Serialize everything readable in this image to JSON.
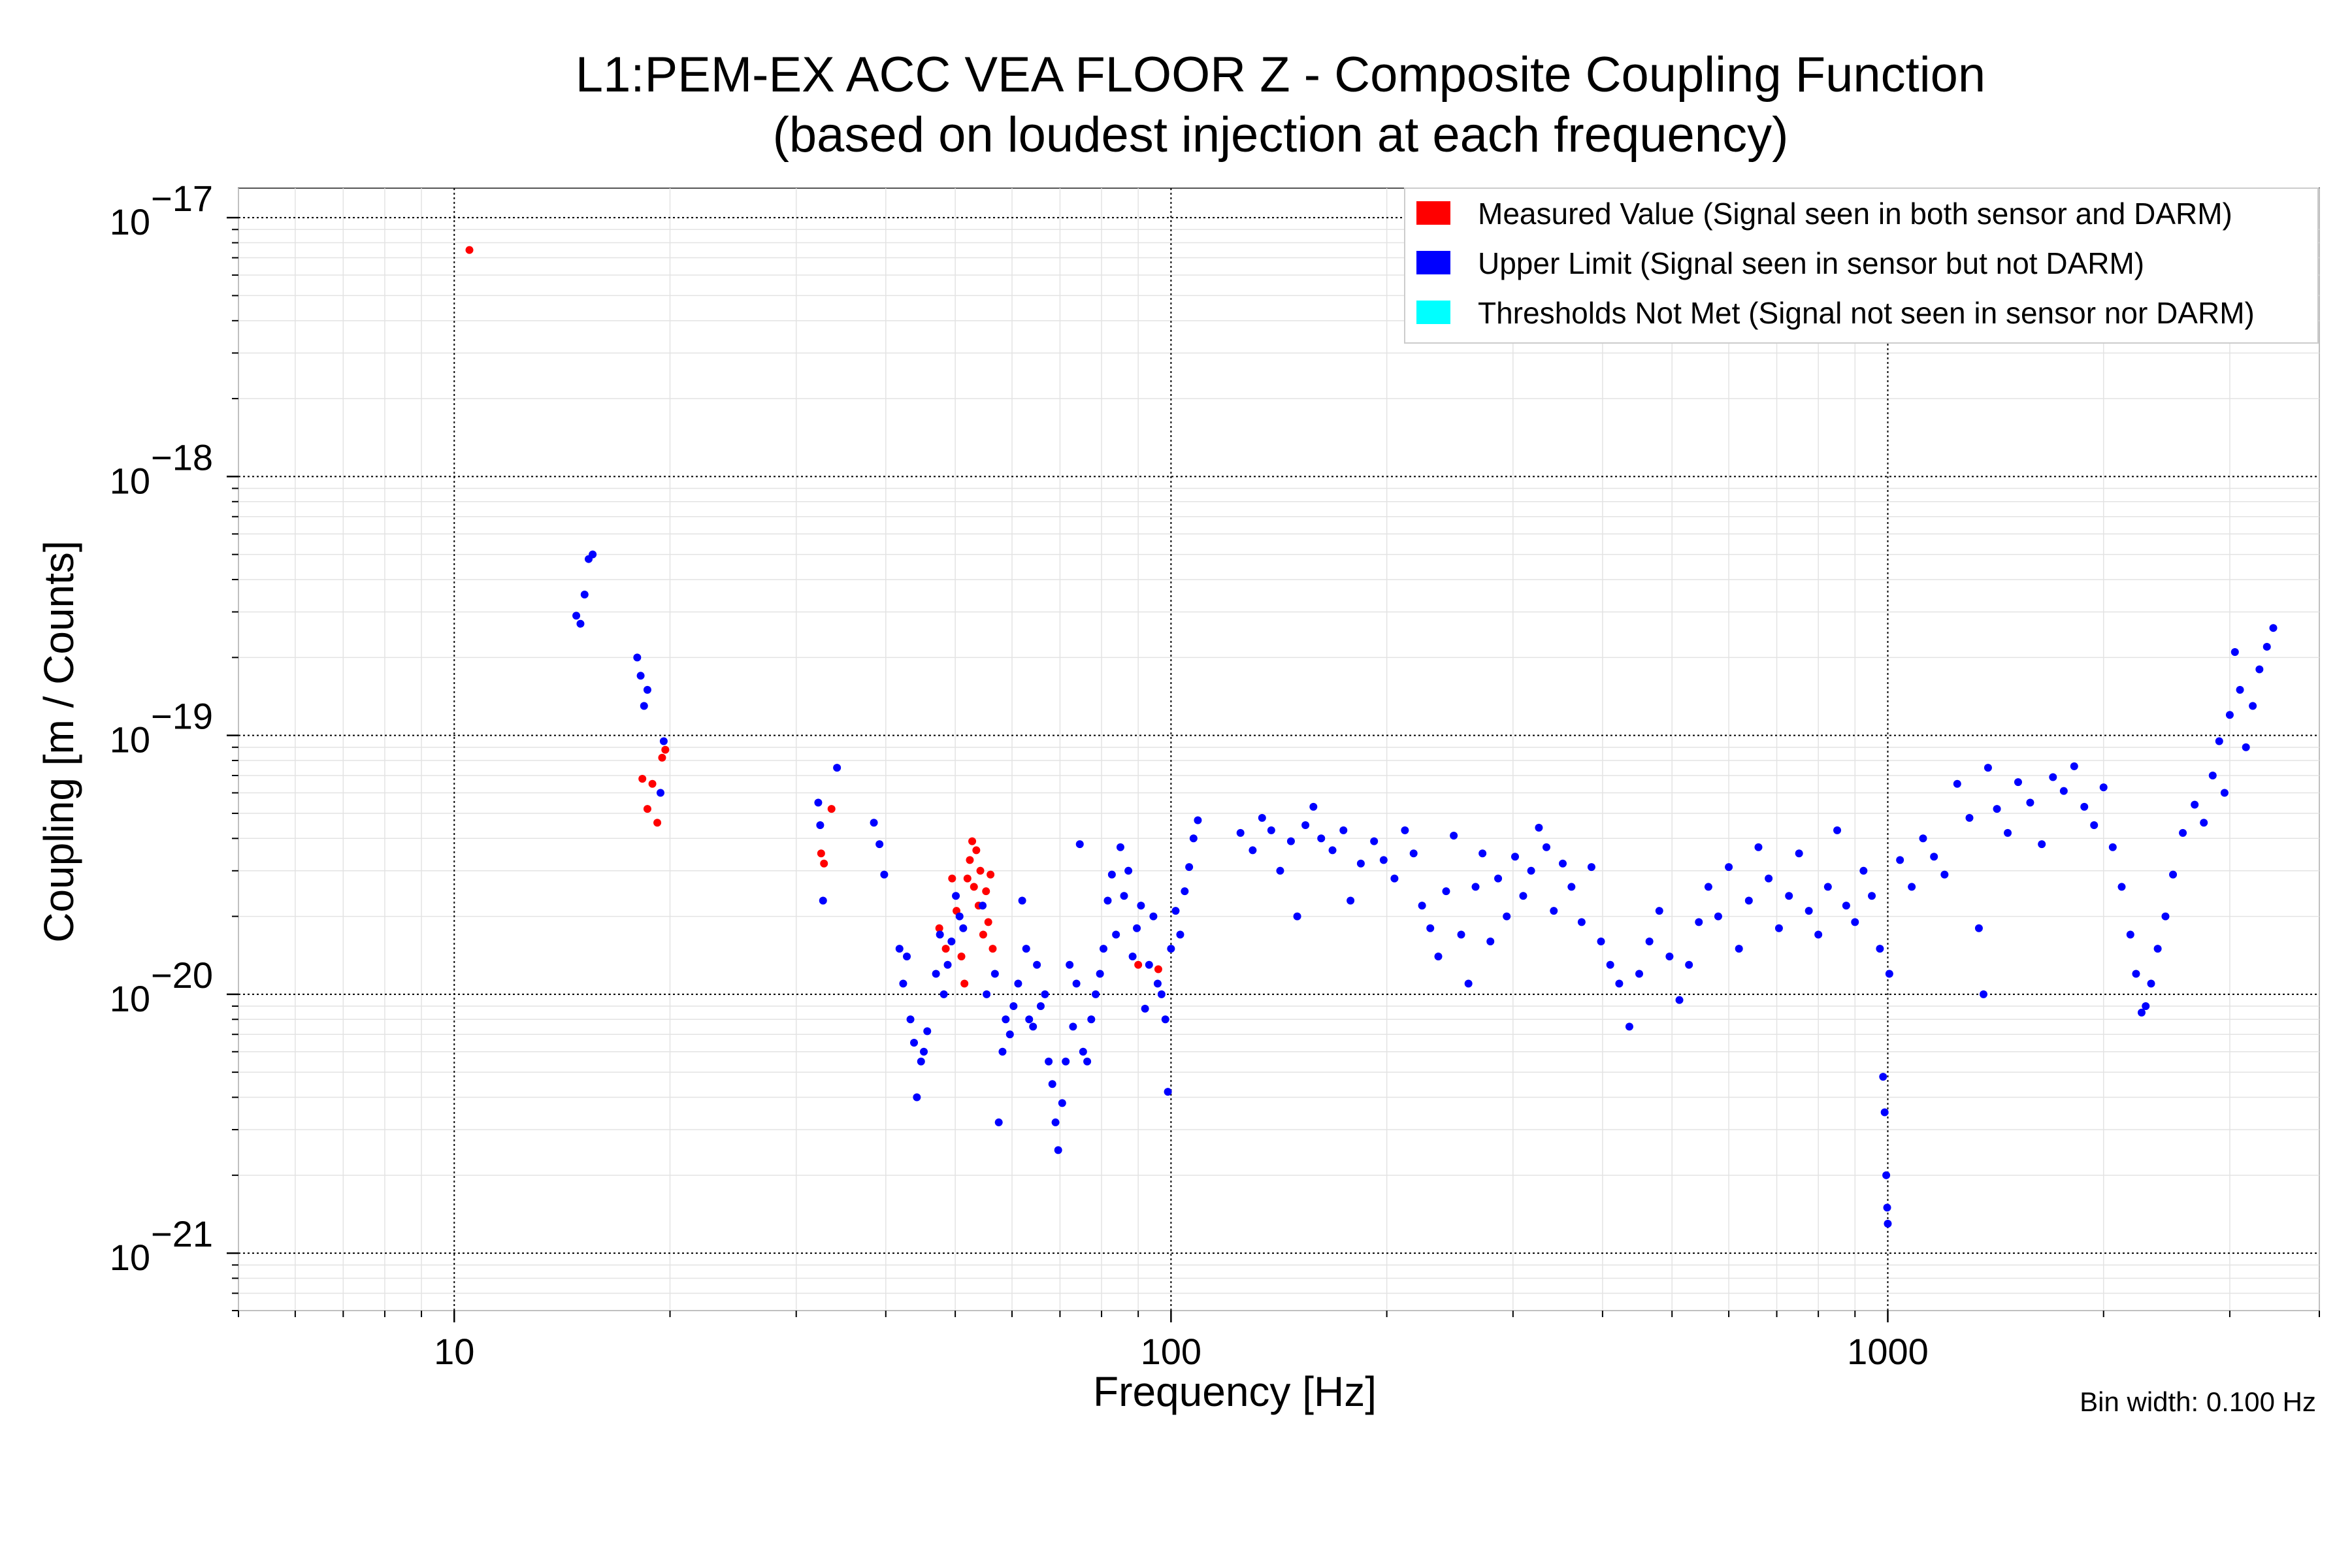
{
  "chart_data": {
    "type": "scatter",
    "title": "L1:PEM-EX ACC VEA FLOOR Z - Composite Coupling Function",
    "subtitle": "(based on loudest injection at each frequency)",
    "xlabel": "Frequency [Hz]",
    "ylabel": "Coupling [m / Counts]",
    "xscale": "log",
    "yscale": "log",
    "xlim": [
      5,
      4000
    ],
    "ylim": [
      6e-22,
      1.3e-17
    ],
    "x_ticks": [
      {
        "value": 10,
        "label": "10"
      },
      {
        "value": 100,
        "label": "100"
      },
      {
        "value": 1000,
        "label": "1000"
      }
    ],
    "y_ticks": [
      {
        "value": 1e-21,
        "base": "10",
        "exp": "−21"
      },
      {
        "value": 1e-20,
        "base": "10",
        "exp": "−20"
      },
      {
        "value": 1e-19,
        "base": "10",
        "exp": "−19"
      },
      {
        "value": 1e-18,
        "base": "10",
        "exp": "−18"
      },
      {
        "value": 1e-17,
        "base": "10",
        "exp": "−17"
      }
    ],
    "grid": true,
    "legend_position": "top-right",
    "note": "Bin width: 0.100 Hz",
    "series": [
      {
        "name": "Measured Value (Signal seen in both sensor and DARM)",
        "color": "#ff0000",
        "points": [
          [
            10.5,
            7.5e-18
          ],
          [
            18.3,
            6.8e-20
          ],
          [
            18.6,
            5.2e-20
          ],
          [
            18.9,
            6.5e-20
          ],
          [
            19.2,
            4.6e-20
          ],
          [
            19.5,
            8.2e-20
          ],
          [
            19.7,
            8.8e-20
          ],
          [
            32.5,
            3.5e-20
          ],
          [
            32.8,
            3.2e-20
          ],
          [
            33.6,
            5.2e-20
          ],
          [
            47.5,
            1.8e-20
          ],
          [
            48.5,
            1.5e-20
          ],
          [
            49.5,
            2.8e-20
          ],
          [
            50.2,
            2.1e-20
          ],
          [
            51.0,
            1.4e-20
          ],
          [
            51.5,
            1.1e-20
          ],
          [
            52.0,
            2.8e-20
          ],
          [
            52.4,
            3.3e-20
          ],
          [
            52.8,
            3.9e-20
          ],
          [
            53.1,
            2.6e-20
          ],
          [
            53.5,
            3.6e-20
          ],
          [
            53.9,
            2.2e-20
          ],
          [
            54.2,
            3e-20
          ],
          [
            54.7,
            1.7e-20
          ],
          [
            55.2,
            2.5e-20
          ],
          [
            55.6,
            1.9e-20
          ],
          [
            56.0,
            2.9e-20
          ],
          [
            56.4,
            1.5e-20
          ],
          [
            90.0,
            1.3e-20
          ],
          [
            96.0,
            1.25e-20
          ]
        ]
      },
      {
        "name": "Upper Limit (Signal seen in sensor but not DARM)",
        "color": "#0000ff",
        "points": [
          [
            14.8,
            2.9e-19
          ],
          [
            15.0,
            2.7e-19
          ],
          [
            15.2,
            3.5e-19
          ],
          [
            15.4,
            4.8e-19
          ],
          [
            15.6,
            5e-19
          ],
          [
            18.0,
            2e-19
          ],
          [
            18.2,
            1.7e-19
          ],
          [
            18.4,
            1.3e-19
          ],
          [
            18.6,
            1.5e-19
          ],
          [
            19.4,
            6e-20
          ],
          [
            19.6,
            9.5e-20
          ],
          [
            32.2,
            5.5e-20
          ],
          [
            32.4,
            4.5e-20
          ],
          [
            32.7,
            2.3e-20
          ],
          [
            34.2,
            7.5e-20
          ],
          [
            38.5,
            4.6e-20
          ],
          [
            39.2,
            3.8e-20
          ],
          [
            39.8,
            2.9e-20
          ],
          [
            41.8,
            1.5e-20
          ],
          [
            42.3,
            1.1e-20
          ],
          [
            42.8,
            1.4e-20
          ],
          [
            43.3,
            8e-21
          ],
          [
            43.8,
            6.5e-21
          ],
          [
            44.2,
            4e-21
          ],
          [
            44.8,
            5.5e-21
          ],
          [
            45.2,
            6e-21
          ],
          [
            45.7,
            7.2e-21
          ],
          [
            47.0,
            1.2e-20
          ],
          [
            47.6,
            1.7e-20
          ],
          [
            48.2,
            1e-20
          ],
          [
            48.8,
            1.3e-20
          ],
          [
            49.4,
            1.6e-20
          ],
          [
            50.1,
            2.4e-20
          ],
          [
            50.7,
            2e-20
          ],
          [
            51.3,
            1.8e-20
          ],
          [
            54.6,
            2.2e-20
          ],
          [
            55.3,
            1e-20
          ],
          [
            56.8,
            1.2e-20
          ],
          [
            57.5,
            3.2e-21
          ],
          [
            58.2,
            6e-21
          ],
          [
            58.8,
            8e-21
          ],
          [
            59.6,
            7e-21
          ],
          [
            60.3,
            9e-21
          ],
          [
            61.2,
            1.1e-20
          ],
          [
            62.0,
            2.3e-20
          ],
          [
            62.8,
            1.5e-20
          ],
          [
            63.4,
            8e-21
          ],
          [
            64.2,
            7.5e-21
          ],
          [
            65.0,
            1.3e-20
          ],
          [
            65.8,
            9e-21
          ],
          [
            66.7,
            1e-20
          ],
          [
            67.5,
            5.5e-21
          ],
          [
            68.3,
            4.5e-21
          ],
          [
            69.0,
            3.2e-21
          ],
          [
            69.6,
            2.5e-21
          ],
          [
            70.5,
            3.8e-21
          ],
          [
            71.3,
            5.5e-21
          ],
          [
            72.2,
            1.3e-20
          ],
          [
            73.0,
            7.5e-21
          ],
          [
            73.8,
            1.1e-20
          ],
          [
            74.6,
            3.8e-20
          ],
          [
            75.4,
            6e-21
          ],
          [
            76.4,
            5.5e-21
          ],
          [
            77.4,
            8e-21
          ],
          [
            78.5,
            1e-20
          ],
          [
            79.6,
            1.2e-20
          ],
          [
            80.5,
            1.5e-20
          ],
          [
            81.6,
            2.3e-20
          ],
          [
            82.7,
            2.9e-20
          ],
          [
            83.8,
            1.7e-20
          ],
          [
            85.0,
            3.7e-20
          ],
          [
            86.0,
            2.4e-20
          ],
          [
            87.2,
            3e-20
          ],
          [
            88.4,
            1.4e-20
          ],
          [
            89.6,
            1.8e-20
          ],
          [
            90.8,
            2.2e-20
          ],
          [
            92.0,
            8.8e-21
          ],
          [
            93.2,
            1.3e-20
          ],
          [
            94.5,
            2e-20
          ],
          [
            95.8,
            1.1e-20
          ],
          [
            97.0,
            1e-20
          ],
          [
            98.2,
            8e-21
          ],
          [
            99.0,
            4.2e-21
          ],
          [
            100.0,
            1.5e-20
          ],
          [
            101.5,
            2.1e-20
          ],
          [
            103.0,
            1.7e-20
          ],
          [
            104.5,
            2.5e-20
          ],
          [
            106.0,
            3.1e-20
          ],
          [
            107.5,
            4e-20
          ],
          [
            109.0,
            4.7e-20
          ],
          [
            125.0,
            4.2e-20
          ],
          [
            130.0,
            3.6e-20
          ],
          [
            134.0,
            4.8e-20
          ],
          [
            138.0,
            4.3e-20
          ],
          [
            142.0,
            3e-20
          ],
          [
            147.0,
            3.9e-20
          ],
          [
            150.0,
            2e-20
          ],
          [
            154.0,
            4.5e-20
          ],
          [
            158.0,
            5.3e-20
          ],
          [
            162.0,
            4e-20
          ],
          [
            168.0,
            3.6e-20
          ],
          [
            174.0,
            4.3e-20
          ],
          [
            178.0,
            2.3e-20
          ],
          [
            184.0,
            3.2e-20
          ],
          [
            192.0,
            3.9e-20
          ],
          [
            198.0,
            3.3e-20
          ],
          [
            205.0,
            2.8e-20
          ],
          [
            212.0,
            4.3e-20
          ],
          [
            218.0,
            3.5e-20
          ],
          [
            224.0,
            2.2e-20
          ],
          [
            230.0,
            1.8e-20
          ],
          [
            236.0,
            1.4e-20
          ],
          [
            242.0,
            2.5e-20
          ],
          [
            248.0,
            4.1e-20
          ],
          [
            254.0,
            1.7e-20
          ],
          [
            260.0,
            1.1e-20
          ],
          [
            266.0,
            2.6e-20
          ],
          [
            272.0,
            3.5e-20
          ],
          [
            279.0,
            1.6e-20
          ],
          [
            286.0,
            2.8e-20
          ],
          [
            294.0,
            2e-20
          ],
          [
            302.0,
            3.4e-20
          ],
          [
            310.0,
            2.4e-20
          ],
          [
            318.0,
            3e-20
          ],
          [
            326.0,
            4.4e-20
          ],
          [
            334.0,
            3.7e-20
          ],
          [
            342.0,
            2.1e-20
          ],
          [
            352.0,
            3.2e-20
          ],
          [
            362.0,
            2.6e-20
          ],
          [
            374.0,
            1.9e-20
          ],
          [
            386.0,
            3.1e-20
          ],
          [
            398.0,
            1.6e-20
          ],
          [
            410.0,
            1.3e-20
          ],
          [
            422.0,
            1.1e-20
          ],
          [
            436.0,
            7.5e-21
          ],
          [
            450.0,
            1.2e-20
          ],
          [
            465.0,
            1.6e-20
          ],
          [
            480.0,
            2.1e-20
          ],
          [
            496.0,
            1.4e-20
          ],
          [
            512.0,
            9.5e-21
          ],
          [
            528.0,
            1.3e-20
          ],
          [
            545.0,
            1.9e-20
          ],
          [
            562.0,
            2.6e-20
          ],
          [
            580.0,
            2e-20
          ],
          [
            600.0,
            3.1e-20
          ],
          [
            620.0,
            1.5e-20
          ],
          [
            640.0,
            2.3e-20
          ],
          [
            660.0,
            3.7e-20
          ],
          [
            682.0,
            2.8e-20
          ],
          [
            705.0,
            1.8e-20
          ],
          [
            728.0,
            2.4e-20
          ],
          [
            752.0,
            3.5e-20
          ],
          [
            776.0,
            2.1e-20
          ],
          [
            800.0,
            1.7e-20
          ],
          [
            825.0,
            2.6e-20
          ],
          [
            850.0,
            4.3e-20
          ],
          [
            875.0,
            2.2e-20
          ],
          [
            900.0,
            1.9e-20
          ],
          [
            925.0,
            3e-20
          ],
          [
            950.0,
            2.4e-20
          ],
          [
            975.0,
            1.5e-20
          ],
          [
            985.0,
            4.8e-21
          ],
          [
            990.0,
            3.5e-21
          ],
          [
            995.0,
            2e-21
          ],
          [
            998.0,
            1.5e-21
          ],
          [
            1000.0,
            1.3e-21
          ],
          [
            1005.0,
            1.2e-20
          ],
          [
            1040.0,
            3.3e-20
          ],
          [
            1080.0,
            2.6e-20
          ],
          [
            1120.0,
            4e-20
          ],
          [
            1160.0,
            3.4e-20
          ],
          [
            1200.0,
            2.9e-20
          ],
          [
            1250.0,
            6.5e-20
          ],
          [
            1300.0,
            4.8e-20
          ],
          [
            1340.0,
            1.8e-20
          ],
          [
            1360.0,
            1e-20
          ],
          [
            1380.0,
            7.5e-20
          ],
          [
            1420.0,
            5.2e-20
          ],
          [
            1470.0,
            4.2e-20
          ],
          [
            1520.0,
            6.6e-20
          ],
          [
            1580.0,
            5.5e-20
          ],
          [
            1640.0,
            3.8e-20
          ],
          [
            1700.0,
            6.9e-20
          ],
          [
            1760.0,
            6.1e-20
          ],
          [
            1820.0,
            7.6e-20
          ],
          [
            1880.0,
            5.3e-20
          ],
          [
            1940.0,
            4.5e-20
          ],
          [
            2000.0,
            6.3e-20
          ],
          [
            2060.0,
            3.7e-20
          ],
          [
            2120.0,
            2.6e-20
          ],
          [
            2180.0,
            1.7e-20
          ],
          [
            2220.0,
            1.2e-20
          ],
          [
            2260.0,
            8.5e-21
          ],
          [
            2290.0,
            9e-21
          ],
          [
            2330.0,
            1.1e-20
          ],
          [
            2380.0,
            1.5e-20
          ],
          [
            2440.0,
            2e-20
          ],
          [
            2500.0,
            2.9e-20
          ],
          [
            2580.0,
            4.2e-20
          ],
          [
            2680.0,
            5.4e-20
          ],
          [
            2760.0,
            4.6e-20
          ],
          [
            2840.0,
            7e-20
          ],
          [
            2900.0,
            9.5e-20
          ],
          [
            2950.0,
            6e-20
          ],
          [
            3000.0,
            1.2e-19
          ],
          [
            3050.0,
            2.1e-19
          ],
          [
            3100.0,
            1.5e-19
          ],
          [
            3160.0,
            9e-20
          ],
          [
            3230.0,
            1.3e-19
          ],
          [
            3300.0,
            1.8e-19
          ],
          [
            3380.0,
            2.2e-19
          ],
          [
            3450.0,
            2.6e-19
          ]
        ]
      },
      {
        "name": "Thresholds Not Met (Signal not seen in sensor nor DARM)",
        "color": "#00ffff",
        "points": []
      }
    ]
  }
}
